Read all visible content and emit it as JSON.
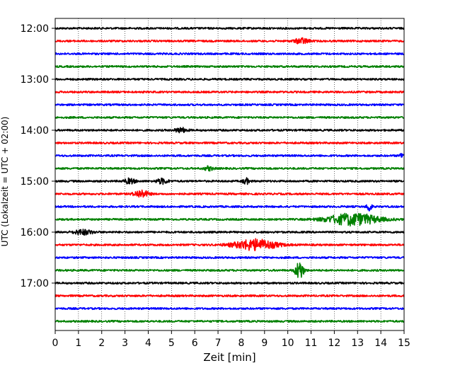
{
  "chart_data": {
    "type": "line",
    "title": "",
    "xlabel": "Zeit  [min]",
    "ylabel": "UTC (Lokalzeit = UTC + 02:00)",
    "xlim": [
      0,
      15
    ],
    "x_ticks": [
      "0",
      "1",
      "2",
      "3",
      "4",
      "5",
      "6",
      "7",
      "8",
      "9",
      "10",
      "11",
      "12",
      "13",
      "14",
      "15"
    ],
    "y_tick_labels": [
      "12:00",
      "13:00",
      "14:00",
      "15:00",
      "16:00",
      "17:00"
    ],
    "grid": "vertical-dotted",
    "trace_interval_min": 15,
    "trace_colors": [
      "#000000",
      "#ff0000",
      "#0000ff",
      "#008000"
    ],
    "traces": [
      {
        "start": "12:00",
        "color": "#000000",
        "events": []
      },
      {
        "start": "12:15",
        "color": "#ff0000",
        "events": [
          {
            "t": 10.6,
            "amp": 1.8,
            "dur": 0.6
          }
        ]
      },
      {
        "start": "12:30",
        "color": "#0000ff",
        "events": []
      },
      {
        "start": "12:45",
        "color": "#008000",
        "events": []
      },
      {
        "start": "13:00",
        "color": "#000000",
        "events": []
      },
      {
        "start": "13:15",
        "color": "#ff0000",
        "events": []
      },
      {
        "start": "13:30",
        "color": "#0000ff",
        "events": []
      },
      {
        "start": "13:45",
        "color": "#008000",
        "events": []
      },
      {
        "start": "14:00",
        "color": "#000000",
        "events": [
          {
            "t": 5.4,
            "amp": 1.5,
            "dur": 0.5
          }
        ]
      },
      {
        "start": "14:15",
        "color": "#ff0000",
        "events": []
      },
      {
        "start": "14:30",
        "color": "#0000ff",
        "events": [
          {
            "t": 14.9,
            "amp": 1.6,
            "dur": 0.2
          }
        ]
      },
      {
        "start": "14:45",
        "color": "#008000",
        "events": [
          {
            "t": 6.6,
            "amp": 1.3,
            "dur": 0.4
          }
        ]
      },
      {
        "start": "15:00",
        "color": "#000000",
        "events": [
          {
            "t": 3.2,
            "amp": 1.6,
            "dur": 0.5
          },
          {
            "t": 4.6,
            "amp": 1.6,
            "dur": 0.5
          },
          {
            "t": 8.2,
            "amp": 1.8,
            "dur": 0.3
          }
        ]
      },
      {
        "start": "15:15",
        "color": "#ff0000",
        "events": [
          {
            "t": 3.7,
            "amp": 2.4,
            "dur": 0.6
          }
        ]
      },
      {
        "start": "15:30",
        "color": "#0000ff",
        "events": [
          {
            "t": 13.5,
            "amp": 3.5,
            "dur": 0.2
          }
        ]
      },
      {
        "start": "15:45",
        "color": "#008000",
        "events": [
          {
            "t": 12.8,
            "amp": 3.8,
            "dur": 2.2
          }
        ]
      },
      {
        "start": "16:00",
        "color": "#000000",
        "events": [
          {
            "t": 1.2,
            "amp": 1.6,
            "dur": 0.8
          }
        ]
      },
      {
        "start": "16:15",
        "color": "#ff0000",
        "events": [
          {
            "t": 8.6,
            "amp": 3.5,
            "dur": 1.8
          }
        ]
      },
      {
        "start": "16:30",
        "color": "#0000ff",
        "events": []
      },
      {
        "start": "16:45",
        "color": "#008000",
        "events": [
          {
            "t": 10.5,
            "amp": 6.0,
            "dur": 0.35
          }
        ]
      },
      {
        "start": "17:00",
        "color": "#000000",
        "events": []
      },
      {
        "start": "17:15",
        "color": "#ff0000",
        "events": []
      },
      {
        "start": "17:30",
        "color": "#0000ff",
        "events": []
      },
      {
        "start": "17:45",
        "color": "#008000",
        "events": []
      }
    ]
  }
}
